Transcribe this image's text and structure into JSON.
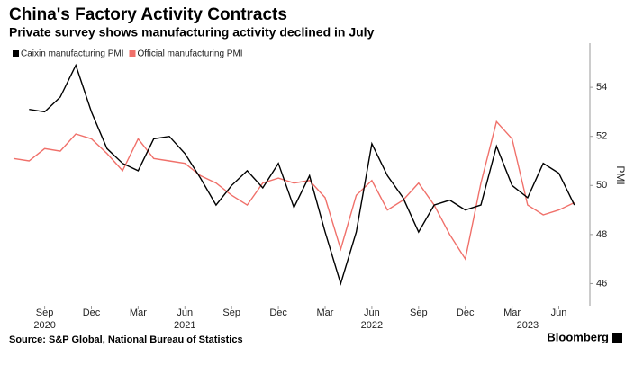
{
  "chart_data": {
    "type": "line",
    "title": "China's Factory Activity Contracts",
    "subtitle": "Private survey shows manufacturing activity declined in July",
    "y_label": "PMI",
    "source": "Source: S&P Global, National Bureau of Statistics",
    "brand": "Bloomberg",
    "categories": [
      null,
      null,
      "Sep",
      null,
      null,
      "Dec",
      null,
      null,
      "Mar",
      null,
      null,
      "Jun",
      null,
      null,
      "Sep",
      null,
      null,
      "Dec",
      null,
      null,
      "Mar",
      null,
      null,
      "Jun",
      null,
      null,
      "Sep",
      null,
      null,
      "Dec",
      null,
      null,
      "Mar",
      null,
      null,
      "Jun",
      null
    ],
    "year_labels": [
      null,
      null,
      "2020",
      null,
      null,
      null,
      null,
      null,
      null,
      null,
      null,
      "2021",
      null,
      null,
      null,
      null,
      null,
      null,
      null,
      null,
      null,
      null,
      null,
      "2022",
      null,
      null,
      null,
      null,
      null,
      null,
      null,
      null,
      null,
      "2023",
      null,
      null,
      null
    ],
    "series": [
      {
        "name": "Caixin manufacturing PMI",
        "color": "#000000",
        "values": [
          null,
          53.1,
          53.0,
          53.6,
          54.9,
          53.0,
          51.5,
          50.9,
          50.6,
          51.9,
          52.0,
          51.3,
          50.3,
          49.2,
          50.0,
          50.6,
          49.9,
          50.9,
          49.1,
          50.4,
          48.1,
          46.0,
          48.1,
          51.7,
          50.4,
          49.5,
          48.1,
          49.2,
          49.4,
          49.0,
          49.2,
          51.6,
          50.0,
          49.5,
          50.9,
          50.5,
          49.2
        ]
      },
      {
        "name": "Official manufacturing PMI",
        "color": "#f0706a",
        "values": [
          51.1,
          51.0,
          51.5,
          51.4,
          52.1,
          51.9,
          51.3,
          50.6,
          51.9,
          51.1,
          51.0,
          50.9,
          50.4,
          50.1,
          49.6,
          49.2,
          50.1,
          50.3,
          50.1,
          50.2,
          49.5,
          47.4,
          49.6,
          50.2,
          49.0,
          49.4,
          50.1,
          49.2,
          48.0,
          47.0,
          50.1,
          52.6,
          51.9,
          49.2,
          48.8,
          49.0,
          49.3
        ]
      }
    ],
    "ylim": [
      45.1,
      55.8
    ],
    "yticks": [
      46,
      48,
      50,
      52,
      54
    ]
  }
}
